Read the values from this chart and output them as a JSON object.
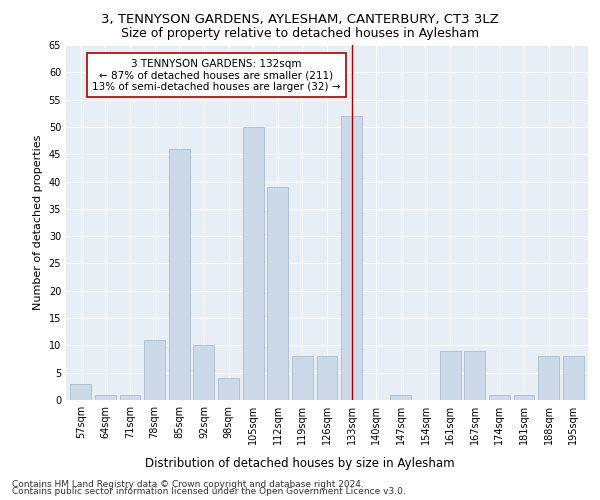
{
  "title": "3, TENNYSON GARDENS, AYLESHAM, CANTERBURY, CT3 3LZ",
  "subtitle": "Size of property relative to detached houses in Aylesham",
  "xlabel": "Distribution of detached houses by size in Aylesham",
  "ylabel": "Number of detached properties",
  "bar_labels": [
    "57sqm",
    "64sqm",
    "71sqm",
    "78sqm",
    "85sqm",
    "92sqm",
    "98sqm",
    "105sqm",
    "112sqm",
    "119sqm",
    "126sqm",
    "133sqm",
    "140sqm",
    "147sqm",
    "154sqm",
    "161sqm",
    "167sqm",
    "174sqm",
    "181sqm",
    "188sqm",
    "195sqm"
  ],
  "bar_values": [
    3,
    1,
    1,
    11,
    46,
    10,
    4,
    50,
    39,
    8,
    8,
    52,
    0,
    1,
    0,
    9,
    9,
    1,
    1,
    8,
    8
  ],
  "bar_color": "#ccd9e8",
  "bar_edgecolor": "#aabccc",
  "vline_x_idx": 11,
  "vline_color": "#aa0000",
  "annotation_text": "3 TENNYSON GARDENS: 132sqm\n← 87% of detached houses are smaller (211)\n13% of semi-detached houses are larger (32) →",
  "annotation_box_color": "#ffffff",
  "annotation_box_edgecolor": "#aa0000",
  "ylim": [
    0,
    65
  ],
  "yticks": [
    0,
    5,
    10,
    15,
    20,
    25,
    30,
    35,
    40,
    45,
    50,
    55,
    60,
    65
  ],
  "background_color": "#e8eef5",
  "footer_line1": "Contains HM Land Registry data © Crown copyright and database right 2024.",
  "footer_line2": "Contains public sector information licensed under the Open Government Licence v3.0.",
  "title_fontsize": 9.5,
  "subtitle_fontsize": 9,
  "xlabel_fontsize": 8.5,
  "ylabel_fontsize": 8,
  "tick_fontsize": 7,
  "annotation_fontsize": 7.5,
  "footer_fontsize": 6.5
}
